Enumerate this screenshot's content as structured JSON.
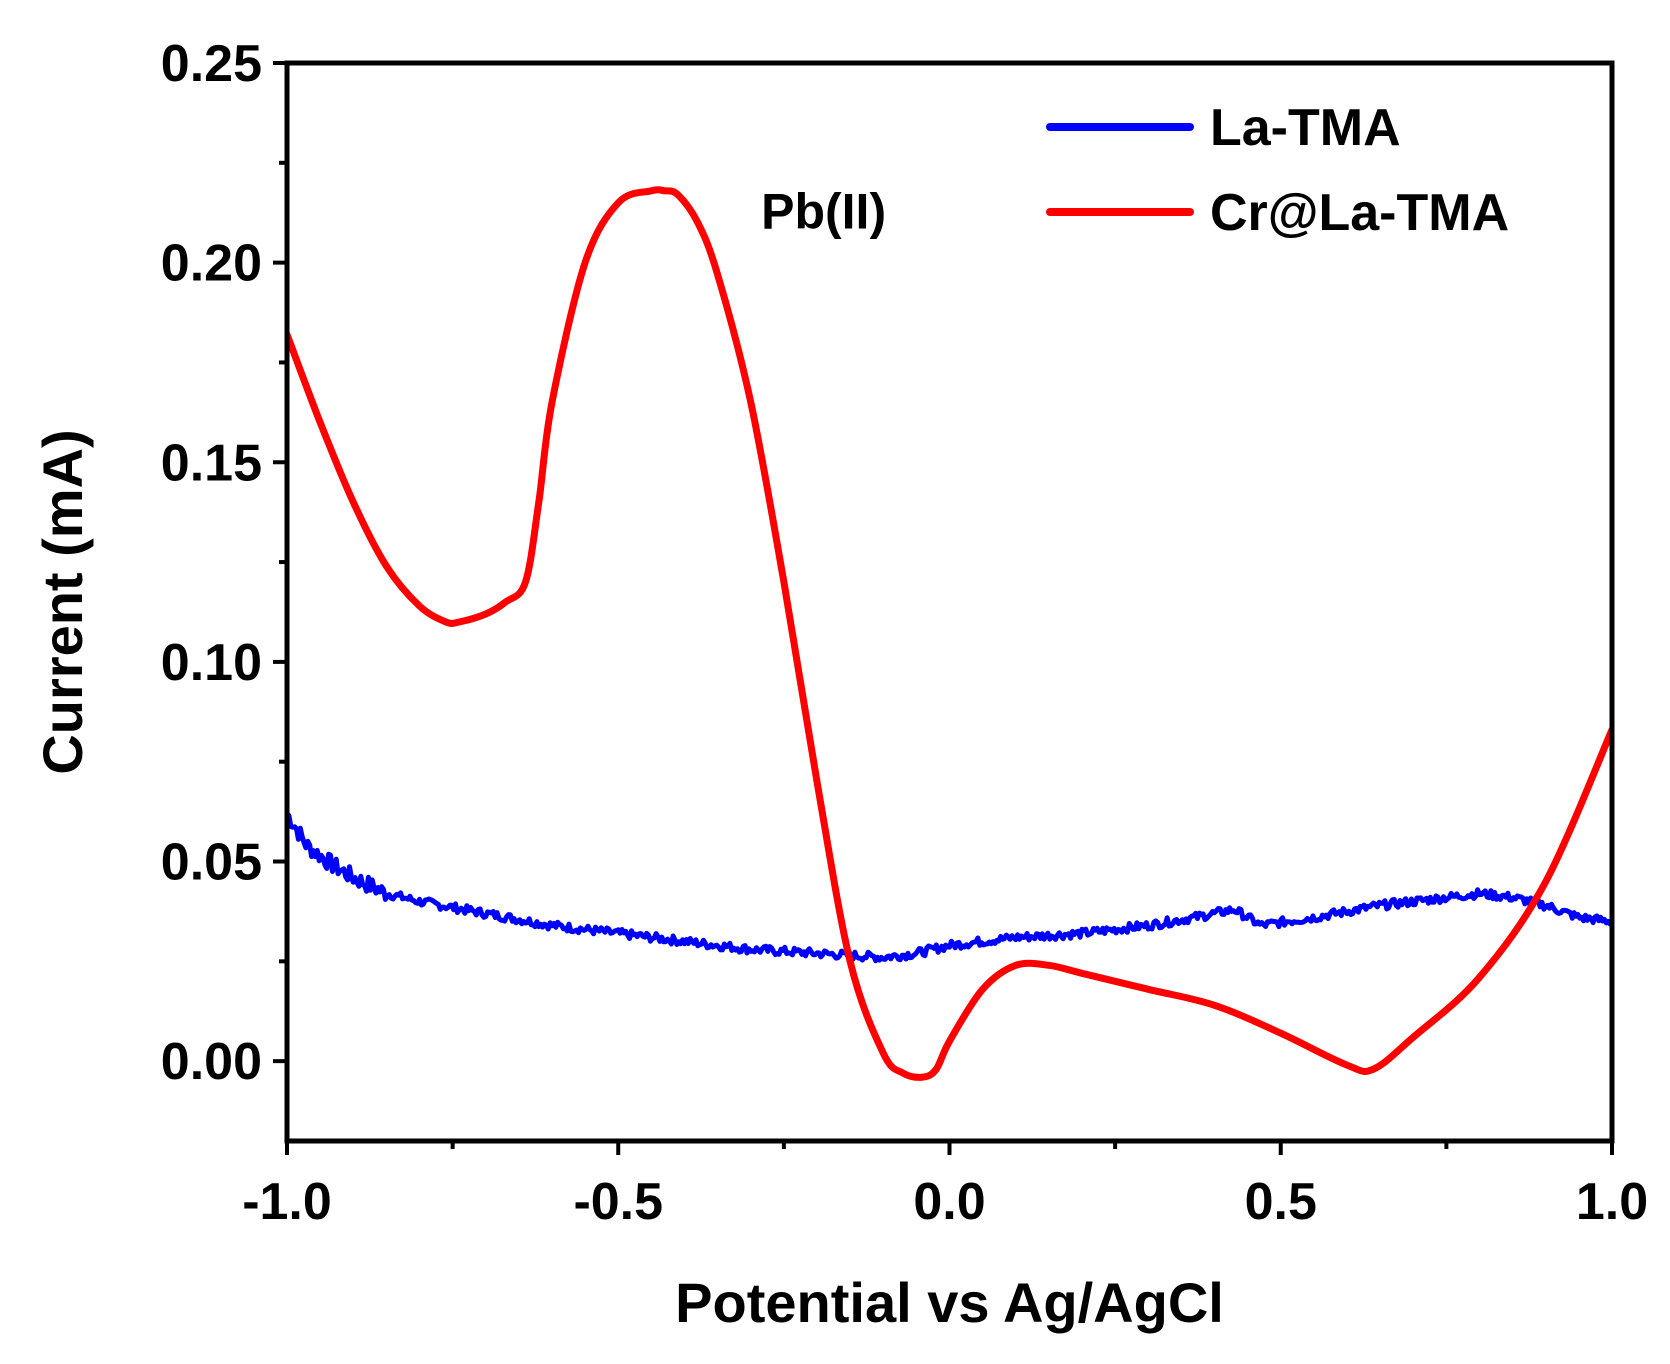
{
  "chart_data": {
    "type": "line",
    "title": "",
    "xlabel": "Potential vs Ag/AgCl",
    "ylabel": "Current (mA)",
    "xlim": [
      -1.0,
      1.0
    ],
    "ylim": [
      -0.02,
      0.25
    ],
    "xticks": [
      -1.0,
      -0.5,
      0.0,
      0.5,
      1.0
    ],
    "xtick_labels": [
      "-1.0",
      "-0.5",
      "0.0",
      "0.5",
      "1.0"
    ],
    "yticks": [
      0.0,
      0.05,
      0.1,
      0.15,
      0.2,
      0.25
    ],
    "ytick_labels": [
      "0.00",
      "0.05",
      "0.10",
      "0.15",
      "0.20",
      "0.25"
    ],
    "grid": false,
    "legend_position": "top-right",
    "annotation": {
      "text": "Pb(II)",
      "x": -0.19,
      "y": 0.213
    },
    "series": [
      {
        "name": "La-TMA",
        "color": "#0000ff",
        "noisy": true,
        "x": [
          -1.0,
          -0.97,
          -0.93,
          -0.9,
          -0.85,
          -0.8,
          -0.7,
          -0.6,
          -0.5,
          -0.4,
          -0.3,
          -0.2,
          -0.1,
          -0.05,
          0.0,
          0.1,
          0.2,
          0.3,
          0.37,
          0.43,
          0.47,
          0.55,
          0.65,
          0.75,
          0.8,
          0.85,
          0.9,
          0.95,
          1.0
        ],
        "y": [
          0.062,
          0.054,
          0.049,
          0.046,
          0.042,
          0.04,
          0.037,
          0.034,
          0.032,
          0.03,
          0.028,
          0.027,
          0.026,
          0.027,
          0.029,
          0.031,
          0.032,
          0.034,
          0.036,
          0.038,
          0.034,
          0.036,
          0.039,
          0.041,
          0.042,
          0.041,
          0.039,
          0.036,
          0.035
        ]
      },
      {
        "name": "Cr@La-TMA",
        "color": "#ff0000",
        "noisy": false,
        "x": [
          -1.0,
          -0.95,
          -0.9,
          -0.85,
          -0.8,
          -0.76,
          -0.74,
          -0.7,
          -0.67,
          -0.64,
          -0.62,
          -0.6,
          -0.55,
          -0.5,
          -0.45,
          -0.43,
          -0.41,
          -0.38,
          -0.35,
          -0.3,
          -0.25,
          -0.2,
          -0.15,
          -0.1,
          -0.07,
          -0.04,
          -0.02,
          0.0,
          0.05,
          0.1,
          0.15,
          0.2,
          0.3,
          0.4,
          0.5,
          0.6,
          0.64,
          0.7,
          0.8,
          0.9,
          1.0
        ],
        "y": [
          0.182,
          0.16,
          0.14,
          0.124,
          0.114,
          0.11,
          0.11,
          0.112,
          0.115,
          0.12,
          0.14,
          0.165,
          0.2,
          0.215,
          0.218,
          0.218,
          0.217,
          0.21,
          0.197,
          0.165,
          0.12,
          0.07,
          0.025,
          0.002,
          -0.003,
          -0.004,
          -0.002,
          0.005,
          0.018,
          0.024,
          0.024,
          0.022,
          0.018,
          0.014,
          0.007,
          -0.001,
          -0.002,
          0.006,
          0.021,
          0.045,
          0.083
        ]
      }
    ]
  }
}
